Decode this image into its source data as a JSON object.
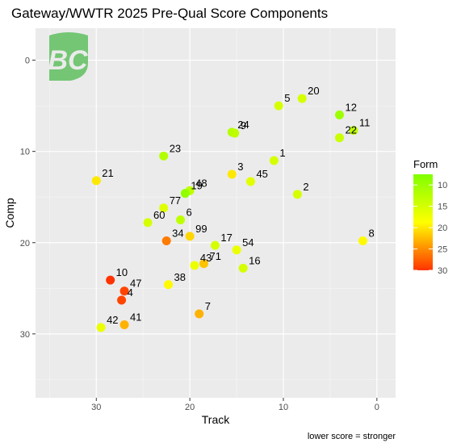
{
  "chart_data": {
    "type": "scatter",
    "title": "Gateway/WWTR 2025 Pre-Qual Score Components",
    "xlabel": "Track",
    "ylabel": "Comp",
    "caption": "lower score = stronger",
    "x_reversed": true,
    "y_reversed": true,
    "xlim": [
      36.5,
      -2.0
    ],
    "ylim": [
      -3.5,
      37.0
    ],
    "x_ticks": [
      30,
      20,
      10,
      0
    ],
    "y_ticks": [
      0,
      10,
      20,
      30
    ],
    "grid": true,
    "logo_text": "BC",
    "legend": {
      "title": "Form",
      "ticks": [
        10,
        15,
        20,
        25,
        30
      ],
      "range": [
        7.5,
        30
      ],
      "colors": [
        "#80ff00",
        "#ffff00",
        "#ff3300"
      ],
      "placement": "right"
    },
    "points": [
      {
        "label": "20",
        "x": 8.0,
        "y": 4.2,
        "form": 15
      },
      {
        "label": "5",
        "x": 10.5,
        "y": 5.0,
        "form": 15
      },
      {
        "label": "12",
        "x": 4.0,
        "y": 6.0,
        "form": 10
      },
      {
        "label": "11",
        "x": 2.5,
        "y": 7.7,
        "form": 13
      },
      {
        "label": "24",
        "x": 15.5,
        "y": 7.9,
        "form": 12
      },
      {
        "label": "9",
        "x": 15.2,
        "y": 8.0,
        "form": 13
      },
      {
        "label": "22",
        "x": 4.0,
        "y": 8.5,
        "form": 14
      },
      {
        "label": "23",
        "x": 22.8,
        "y": 10.5,
        "form": 12
      },
      {
        "label": "1",
        "x": 11.0,
        "y": 11.0,
        "form": 15
      },
      {
        "label": "3",
        "x": 15.5,
        "y": 12.5,
        "form": 20
      },
      {
        "label": "21",
        "x": 30.0,
        "y": 13.2,
        "form": 20
      },
      {
        "label": "45",
        "x": 13.5,
        "y": 13.3,
        "form": 16
      },
      {
        "label": "48",
        "x": 20.0,
        "y": 14.3,
        "form": 13
      },
      {
        "label": "19",
        "x": 20.5,
        "y": 14.6,
        "form": 9
      },
      {
        "label": "2",
        "x": 8.5,
        "y": 14.7,
        "form": 15
      },
      {
        "label": "77",
        "x": 22.8,
        "y": 16.2,
        "form": 16
      },
      {
        "label": "6",
        "x": 21.0,
        "y": 17.5,
        "form": 13
      },
      {
        "label": "60",
        "x": 24.5,
        "y": 17.8,
        "form": 15
      },
      {
        "label": "34",
        "x": 22.5,
        "y": 19.8,
        "form": 26
      },
      {
        "label": "99",
        "x": 20.0,
        "y": 19.3,
        "form": 21
      },
      {
        "label": "8",
        "x": 1.5,
        "y": 19.8,
        "form": 19
      },
      {
        "label": "17",
        "x": 17.3,
        "y": 20.3,
        "form": 15
      },
      {
        "label": "54",
        "x": 15.0,
        "y": 20.8,
        "form": 17
      },
      {
        "label": "71",
        "x": 18.5,
        "y": 22.3,
        "form": 22
      },
      {
        "label": "43",
        "x": 19.5,
        "y": 22.5,
        "form": 17
      },
      {
        "label": "16",
        "x": 14.3,
        "y": 22.8,
        "form": 15
      },
      {
        "label": "10",
        "x": 28.5,
        "y": 24.1,
        "form": 30
      },
      {
        "label": "38",
        "x": 22.3,
        "y": 24.6,
        "form": 19
      },
      {
        "label": "47",
        "x": 27.0,
        "y": 25.3,
        "form": 29
      },
      {
        "label": "4",
        "x": 27.3,
        "y": 26.3,
        "form": 29
      },
      {
        "label": "7",
        "x": 19.0,
        "y": 27.8,
        "form": 23
      },
      {
        "label": "42",
        "x": 29.5,
        "y": 29.3,
        "form": 17
      },
      {
        "label": "41",
        "x": 27.0,
        "y": 29.0,
        "form": 23
      }
    ]
  }
}
